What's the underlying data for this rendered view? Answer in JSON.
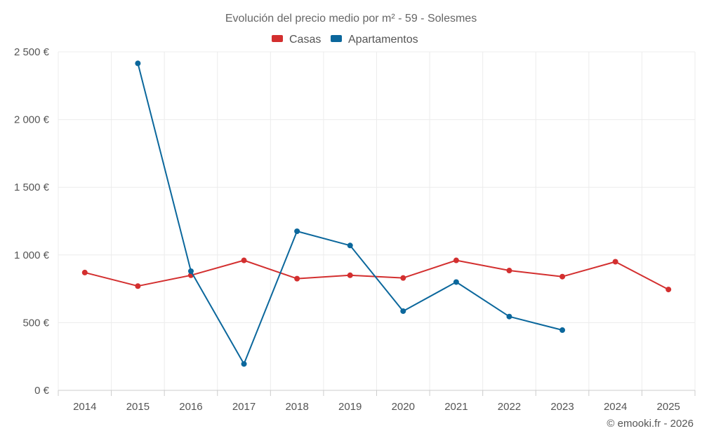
{
  "chart_data": {
    "type": "line",
    "title": "Evolución del precio medio por m² - 59 - Solesmes",
    "categories": [
      "2014",
      "2015",
      "2016",
      "2017",
      "2018",
      "2019",
      "2020",
      "2021",
      "2022",
      "2023",
      "2024",
      "2025"
    ],
    "ylim": [
      0,
      2500
    ],
    "yticks": [
      0,
      500,
      1000,
      1500,
      2000,
      2500
    ],
    "ytick_labels": [
      "0 €",
      "500 €",
      "1 000 €",
      "1 500 €",
      "2 000 €",
      "2 500 €"
    ],
    "grid": true,
    "legend_position": "top-center",
    "series": [
      {
        "name": "Casas",
        "color": "#d32f2f",
        "values": [
          870,
          770,
          850,
          960,
          825,
          850,
          830,
          960,
          885,
          840,
          950,
          745
        ]
      },
      {
        "name": "Apartamentos",
        "color": "#0b679c",
        "values": [
          null,
          2415,
          880,
          195,
          1175,
          1070,
          585,
          800,
          545,
          445,
          null,
          null
        ]
      }
    ]
  },
  "credit": "© emooki.fr - 2026"
}
